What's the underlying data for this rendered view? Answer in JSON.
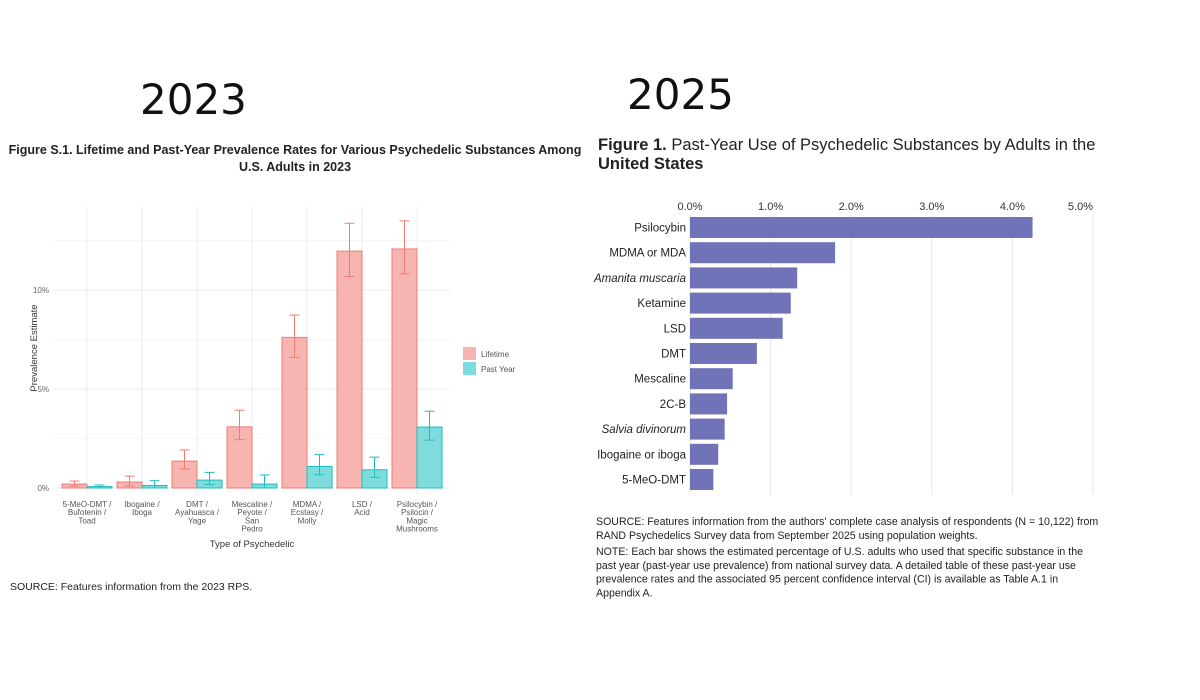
{
  "headings": {
    "left_year": "2023",
    "right_year": "2025"
  },
  "chart_data": [
    {
      "type": "bar",
      "title": "Figure S.1. Lifetime and Past-Year Prevalence Rates for Various Psychedelic Substances Among U.S. Adults in 2023",
      "title_lines": [
        "Figure S.1. Lifetime and Past-Year Prevalence Rates for Various Psychedelic Substances Among",
        "U.S. Adults in 2023"
      ],
      "xlabel": "Type of Psychedelic",
      "ylabel": "Prevalence Estimate",
      "ylim": [
        0,
        14.2
      ],
      "yticks": [
        0,
        5,
        10
      ],
      "ytick_labels": [
        "0%",
        "5%",
        "10%"
      ],
      "grid": true,
      "legend_position": "right",
      "categories": [
        [
          "5-MeO-DMT /",
          "Bufotenin /",
          "Toad"
        ],
        [
          "Ibogaine /",
          "Iboga"
        ],
        [
          "DMT /",
          "Ayahuasca /",
          "Yage"
        ],
        [
          "Mescaline /",
          "Peyote /",
          "San",
          "Pedro"
        ],
        [
          "MDMA /",
          "Ecstasy /",
          "Molly"
        ],
        [
          "LSD /",
          "Acid"
        ],
        [
          "Psilocybin /",
          "Psilocin /",
          "Magic",
          "Mushrooms"
        ]
      ],
      "series": [
        {
          "name": "Lifetime",
          "color": "#f8b4b0",
          "stroke": "#ef7b75",
          "values": [
            0.2,
            0.3,
            1.36,
            3.09,
            7.61,
            11.97,
            12.08
          ],
          "ci_low": [
            0.1,
            0.1,
            0.96,
            2.44,
            6.6,
            10.69,
            10.82
          ],
          "ci_high": [
            0.35,
            0.6,
            1.92,
            3.93,
            8.74,
            13.38,
            13.5
          ]
        },
        {
          "name": "Past Year",
          "color": "#7fdcdc",
          "stroke": "#1fbcbc",
          "values": [
            0.07,
            0.13,
            0.4,
            0.2,
            1.09,
            0.92,
            3.08
          ],
          "ci_low": [
            0.0,
            0.0,
            0.17,
            0.0,
            0.67,
            0.54,
            2.42
          ],
          "ci_high": [
            0.15,
            0.37,
            0.79,
            0.66,
            1.7,
            1.56,
            3.88
          ]
        }
      ],
      "source": "SOURCE: Features information from the 2023 RPS."
    },
    {
      "type": "bar",
      "orientation": "horizontal",
      "title": "Figure 1. Past-Year Use of Psychedelic Substances by Adults in the United States",
      "title_lines": [
        {
          "bold_prefix": "Figure 1.",
          "rest": " Past-Year Use of Psychedelic Substances by Adults in the"
        },
        {
          "rest": "United States"
        }
      ],
      "xlim": [
        0,
        5
      ],
      "xticks": [
        0,
        1,
        2,
        3,
        4,
        5
      ],
      "xtick_labels": [
        "0.0%",
        "1.0%",
        "2.0%",
        "3.0%",
        "4.0%",
        "5.0%"
      ],
      "grid": true,
      "color": "#7073b8",
      "categories": [
        "Psilocybin",
        "MDMA or MDA",
        "Amanita muscaria",
        "Ketamine",
        "LSD",
        "DMT",
        "Mescaline",
        "2C-B",
        "Salvia divinorum",
        "Ibogaine or iboga",
        "5-MeO-DMT"
      ],
      "italic": [
        false,
        false,
        true,
        false,
        false,
        false,
        false,
        false,
        true,
        false,
        false
      ],
      "values": [
        4.25,
        1.8,
        1.33,
        1.25,
        1.15,
        0.83,
        0.53,
        0.46,
        0.43,
        0.35,
        0.29
      ],
      "source_lines": [
        "SOURCE: Features information from the authors' complete case analysis of respondents (N = 10,122) from",
        "RAND Psychedelics Survey data from September 2025 using population weights."
      ],
      "note_lines": [
        "NOTE: Each bar shows the estimated percentage of U.S. adults who used that specific substance in the",
        "past year (past-year use prevalence) from national survey data. A detailed table of these past-year use",
        "prevalence rates and the associated 95 percent confidence interval (CI) is available as Table A.1 in",
        "Appendix A."
      ]
    }
  ]
}
